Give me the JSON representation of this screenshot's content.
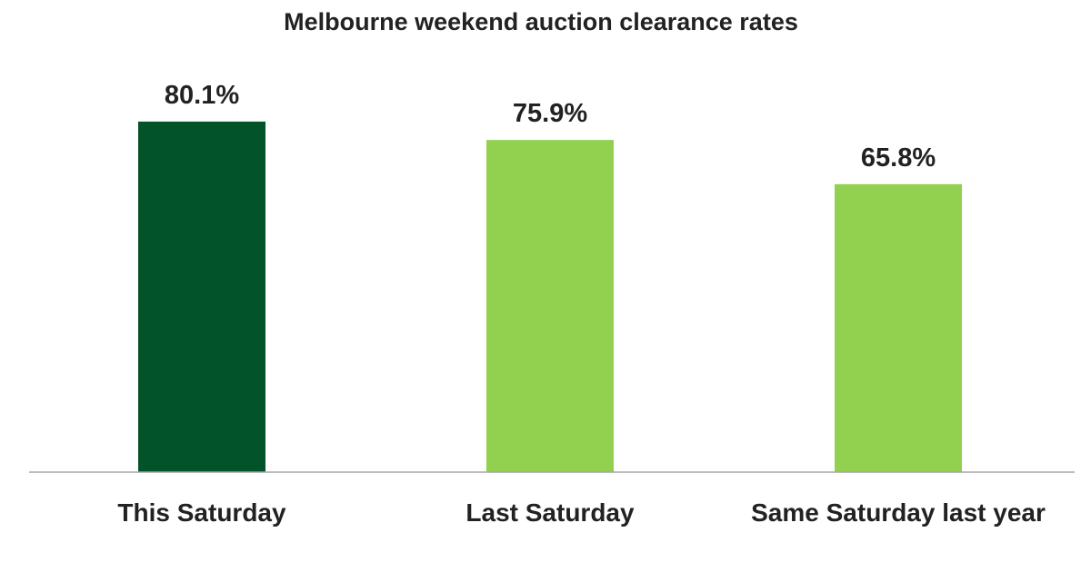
{
  "chart_data": {
    "type": "bar",
    "title": "Melbourne weekend auction clearance rates",
    "categories": [
      "This Saturday",
      "Last Saturday",
      "Same Saturday last year"
    ],
    "values": [
      80.1,
      75.9,
      65.8
    ],
    "value_labels": [
      "80.1%",
      "75.9%",
      "65.8%"
    ],
    "unit": "%",
    "colors": [
      "#03532a",
      "#92d050",
      "#92d050"
    ],
    "ylim": [
      0,
      100
    ],
    "grid": false,
    "legend": "none",
    "axis_color": "#a6a6a6"
  }
}
